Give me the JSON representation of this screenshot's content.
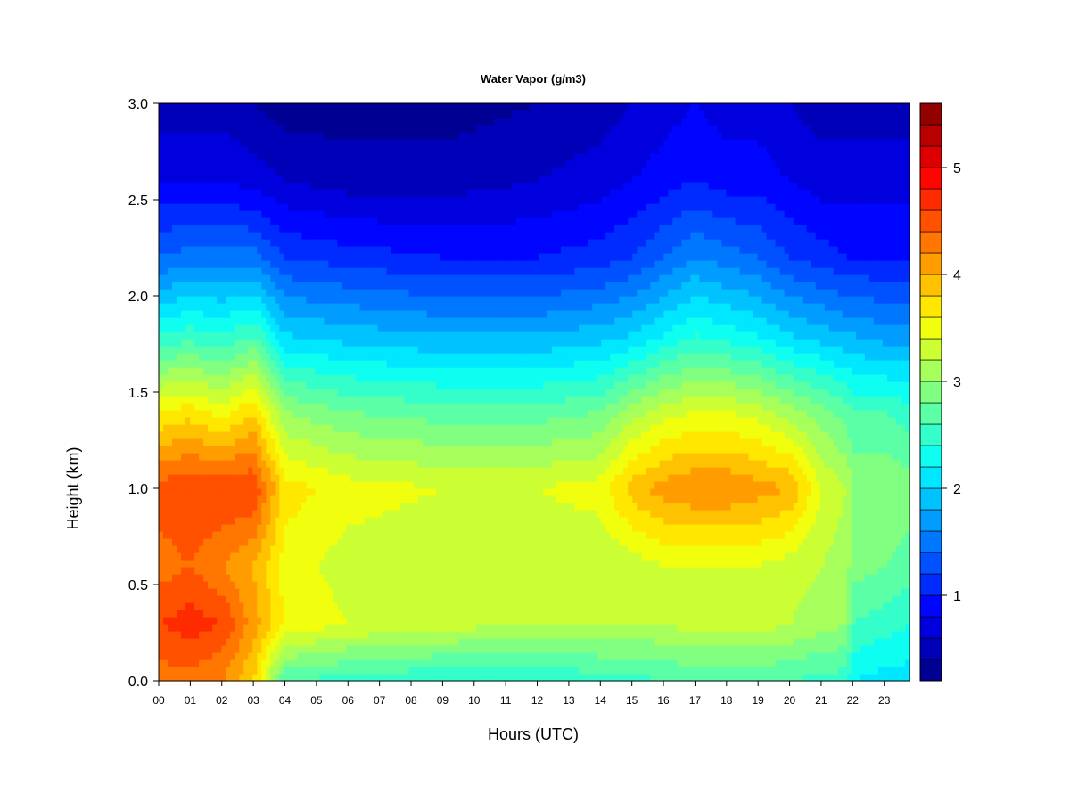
{
  "chart_data": {
    "type": "heatmap",
    "title": "Water Vapor (g/m3)",
    "xlabel": "Hours (UTC)",
    "ylabel": "Height (km)",
    "x_tick_labels": [
      "00",
      "01",
      "02",
      "03",
      "04",
      "05",
      "06",
      "07",
      "08",
      "09",
      "10",
      "11",
      "12",
      "13",
      "14",
      "15",
      "16",
      "17",
      "18",
      "19",
      "20",
      "21",
      "22",
      "23"
    ],
    "xlim": [
      0,
      23.8
    ],
    "ylim": [
      0,
      3.0
    ],
    "y_ticks": [
      0.0,
      0.5,
      1.0,
      1.5,
      2.0,
      2.5,
      3.0
    ],
    "y_tick_labels": [
      "0.0",
      "0.5",
      "1.0",
      "1.5",
      "2.0",
      "2.5",
      "3.0"
    ],
    "colorbar": {
      "range": [
        0.2,
        5.6
      ],
      "levels": 27,
      "ticks": [
        1,
        2,
        3,
        4,
        5
      ],
      "tick_labels": [
        "1",
        "2",
        "3",
        "4",
        "5"
      ],
      "colormap": [
        "#00007f",
        "#0000ff",
        "#0080ff",
        "#00ffff",
        "#80ff80",
        "#ffff00",
        "#ff8000",
        "#ff0000",
        "#7f0000"
      ]
    },
    "hours": [
      0,
      1,
      2,
      3,
      4,
      6,
      9,
      12,
      14,
      15,
      16,
      17,
      18,
      19,
      20,
      21,
      21.8,
      22,
      23,
      23.8
    ],
    "heights_km": [
      0.0,
      0.3,
      0.6,
      1.0,
      1.4,
      1.8,
      2.2,
      2.6,
      3.0
    ],
    "values": [
      [
        4.3,
        4.3,
        4.2,
        3.8,
        2.6,
        2.5,
        2.4,
        2.4,
        2.5,
        2.5,
        2.6,
        2.6,
        2.6,
        2.6,
        2.6,
        2.5,
        2.5,
        2.2,
        2.1,
        2.1
      ],
      [
        4.6,
        4.7,
        4.6,
        4.1,
        3.6,
        3.4,
        3.3,
        3.2,
        3.2,
        3.2,
        3.2,
        3.3,
        3.3,
        3.3,
        3.2,
        3.1,
        3.0,
        2.6,
        2.5,
        2.4
      ],
      [
        4.3,
        4.4,
        4.2,
        4.0,
        3.5,
        3.3,
        3.2,
        3.2,
        3.2,
        3.3,
        3.4,
        3.4,
        3.4,
        3.4,
        3.3,
        3.2,
        3.1,
        2.9,
        2.8,
        2.7
      ],
      [
        4.5,
        4.6,
        4.6,
        4.6,
        3.7,
        3.5,
        3.4,
        3.4,
        3.5,
        3.9,
        4.1,
        4.2,
        4.2,
        4.1,
        4.0,
        3.4,
        3.2,
        3.0,
        3.0,
        2.9
      ],
      [
        3.6,
        3.7,
        3.5,
        3.8,
        3.0,
        2.8,
        2.7,
        2.7,
        2.8,
        3.1,
        3.3,
        3.4,
        3.4,
        3.3,
        3.1,
        2.9,
        2.7,
        2.6,
        2.6,
        2.5
      ],
      [
        2.4,
        2.5,
        2.4,
        2.6,
        2.0,
        1.9,
        1.8,
        1.8,
        1.9,
        2.0,
        2.2,
        2.4,
        2.3,
        2.2,
        2.0,
        1.9,
        1.8,
        1.8,
        1.7,
        1.7
      ],
      [
        1.4,
        1.5,
        1.5,
        1.5,
        1.2,
        1.1,
        1.0,
        1.0,
        1.1,
        1.2,
        1.4,
        1.6,
        1.5,
        1.4,
        1.2,
        1.1,
        1.0,
        1.0,
        1.0,
        1.0
      ],
      [
        0.8,
        0.8,
        0.8,
        0.7,
        0.6,
        0.5,
        0.5,
        0.6,
        0.7,
        0.8,
        0.9,
        1.0,
        0.9,
        0.9,
        0.8,
        0.7,
        0.7,
        0.7,
        0.7,
        0.7
      ],
      [
        0.5,
        0.5,
        0.5,
        0.4,
        0.3,
        0.3,
        0.3,
        0.4,
        0.5,
        0.6,
        0.7,
        0.8,
        0.7,
        0.7,
        0.6,
        0.5,
        0.5,
        0.5,
        0.5,
        0.5
      ]
    ]
  }
}
